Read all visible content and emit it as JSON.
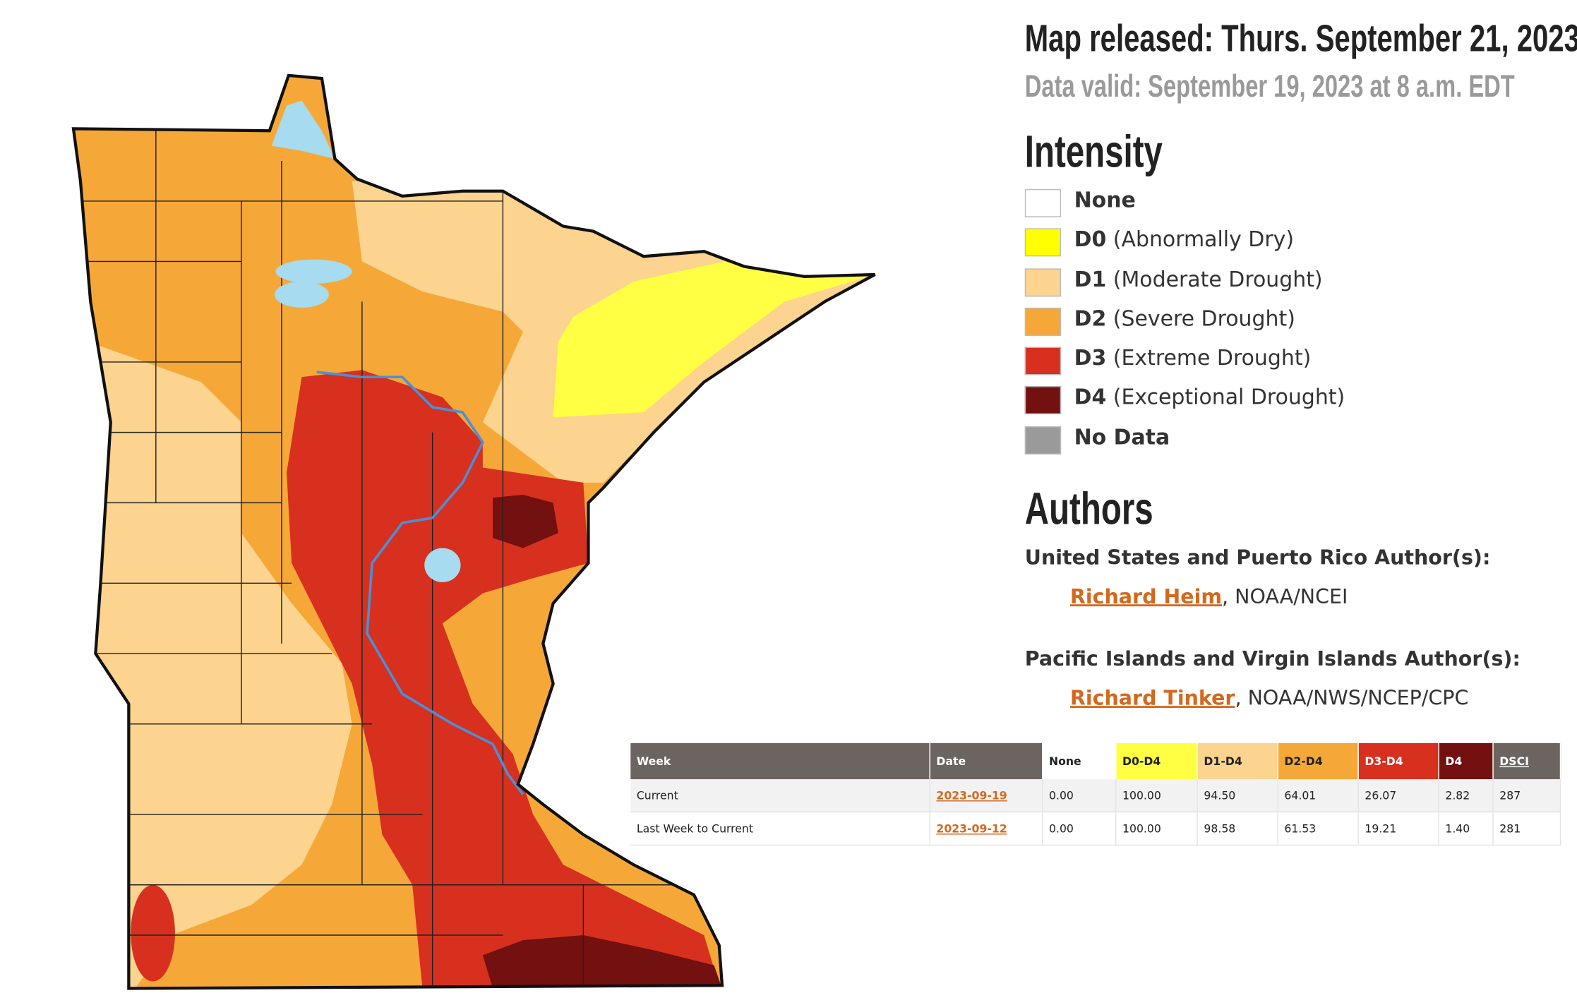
{
  "header": {
    "released": "Map released: Thurs. September 21, 2023",
    "valid": "Data valid: September 19, 2023 at 8 a.m. EDT"
  },
  "legend": {
    "title": "Intensity",
    "items": [
      {
        "code": "None",
        "color": "#ffffff"
      },
      {
        "code": "D0",
        "description": "(Abnormally Dry)",
        "color": "#ffff00"
      },
      {
        "code": "D1",
        "description": "(Moderate Drought)",
        "color": "#fcd38f"
      },
      {
        "code": "D2",
        "description": "(Severe Drought)",
        "color": "#f5a838"
      },
      {
        "code": "D3",
        "description": "(Extreme Drought)",
        "color": "#d7301f"
      },
      {
        "code": "D4",
        "description": "(Exceptional Drought)",
        "color": "#731010"
      },
      {
        "code": "No Data",
        "color": "#9a9a9a"
      }
    ]
  },
  "authors": {
    "title": "Authors",
    "groups": [
      {
        "heading": "United States and Puerto Rico Author(s):",
        "name": "Richard Heim",
        "affiliation": ", NOAA/NCEI"
      },
      {
        "heading": "Pacific Islands and Virgin Islands Author(s):",
        "name": "Richard Tinker",
        "affiliation": ", NOAA/NWS/NCEP/CPC"
      }
    ]
  },
  "table": {
    "columns": [
      {
        "label": "Week",
        "color": "#6b6461",
        "text_color": "#ffffff"
      },
      {
        "label": "Date",
        "color": "#6b6461",
        "text_color": "#ffffff"
      },
      {
        "label": "None",
        "color": "#ffffff",
        "text_color": "#222222"
      },
      {
        "label": "D0-D4",
        "color": "#ffff44",
        "text_color": "#222222"
      },
      {
        "label": "D1-D4",
        "color": "#fcd38f",
        "text_color": "#222222"
      },
      {
        "label": "D2-D4",
        "color": "#f5a838",
        "text_color": "#222222"
      },
      {
        "label": "D3-D4",
        "color": "#d7301f",
        "text_color": "#ffffff"
      },
      {
        "label": "D4",
        "color": "#731010",
        "text_color": "#ffffff"
      },
      {
        "label": "DSCI",
        "color": "#6b6461",
        "text_color": "#ffffff"
      }
    ],
    "rows": [
      [
        "Current",
        "2023-09-19",
        "0.00",
        "100.00",
        "94.50",
        "64.01",
        "26.07",
        "2.82",
        "287"
      ],
      [
        "Last Week to Current",
        "2023-09-12",
        "0.00",
        "100.00",
        "98.58",
        "61.53",
        "19.21",
        "1.40",
        "281"
      ]
    ]
  }
}
